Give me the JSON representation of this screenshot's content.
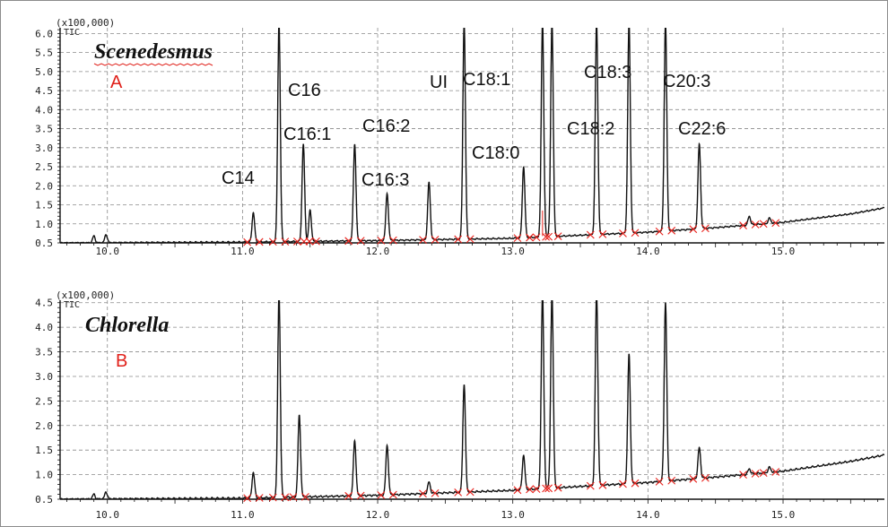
{
  "chart_data": [
    {
      "type": "line",
      "title": "Scenedesmus",
      "panel_label": "A",
      "y_multiplier": "(x100,000)",
      "y_tag": "TIC",
      "xlim": [
        9.65,
        15.75
      ],
      "ylim": [
        0.5,
        6.15
      ],
      "x_ticks": [
        "10.0",
        "11.0",
        "12.0",
        "13.0",
        "14.0",
        "15.0"
      ],
      "y_ticks": [
        "0.5",
        "1.0",
        "1.5",
        "2.0",
        "2.5",
        "3.0",
        "3.5",
        "4.0",
        "4.5",
        "5.0",
        "5.5",
        "6.0"
      ],
      "grid": true,
      "baseline": [
        [
          9.65,
          0.5
        ],
        [
          11.0,
          0.52
        ],
        [
          12.0,
          0.56
        ],
        [
          13.0,
          0.62
        ],
        [
          14.0,
          0.78
        ],
        [
          14.5,
          0.9
        ],
        [
          15.0,
          1.04
        ],
        [
          15.5,
          1.26
        ],
        [
          15.75,
          1.42
        ]
      ],
      "peaks": [
        {
          "x": 9.9,
          "h": 0.68
        },
        {
          "x": 9.99,
          "h": 0.72
        },
        {
          "x": 11.08,
          "h": 1.3,
          "label": "C14"
        },
        {
          "x": 11.27,
          "h": 6.3,
          "label": "C16"
        },
        {
          "x": 11.45,
          "h": 3.1,
          "label": "C16:1"
        },
        {
          "x": 11.5,
          "h": 1.35
        },
        {
          "x": 11.83,
          "h": 3.1,
          "label": "C16:2"
        },
        {
          "x": 12.07,
          "h": 1.8,
          "label": "C16:3"
        },
        {
          "x": 12.38,
          "h": 2.1
        },
        {
          "x": 12.64,
          "h": 6.3,
          "label": "UI"
        },
        {
          "x": 13.08,
          "h": 2.5,
          "label": "C18:0"
        },
        {
          "x": 13.22,
          "h": 6.3,
          "label": "C18:1"
        },
        {
          "x": 13.29,
          "h": 6.3
        },
        {
          "x": 13.62,
          "h": 6.3,
          "label": "C18:3"
        },
        {
          "x": 13.86,
          "h": 6.3,
          "label": "C18:2"
        },
        {
          "x": 14.13,
          "h": 6.3,
          "label": "C20:3"
        },
        {
          "x": 14.38,
          "h": 3.1,
          "label": "C22:6"
        },
        {
          "x": 14.75,
          "h": 1.2
        },
        {
          "x": 14.9,
          "h": 1.15
        }
      ]
    },
    {
      "type": "line",
      "title": "Chlorella",
      "panel_label": "B",
      "y_multiplier": "(x100,000)",
      "y_tag": "TIC",
      "xlim": [
        9.65,
        15.75
      ],
      "ylim": [
        0.5,
        4.55
      ],
      "x_ticks": [
        "10.0",
        "11.0",
        "12.0",
        "13.0",
        "14.0",
        "15.0"
      ],
      "y_ticks": [
        "0.5",
        "1.0",
        "1.5",
        "2.0",
        "2.5",
        "3.0",
        "3.5",
        "4.0",
        "4.5"
      ],
      "grid": true,
      "baseline": [
        [
          9.65,
          0.5
        ],
        [
          11.0,
          0.52
        ],
        [
          12.0,
          0.58
        ],
        [
          13.0,
          0.68
        ],
        [
          14.0,
          0.84
        ],
        [
          14.5,
          0.95
        ],
        [
          15.0,
          1.07
        ],
        [
          15.5,
          1.27
        ],
        [
          15.75,
          1.4
        ]
      ],
      "peaks": [
        {
          "x": 9.9,
          "h": 0.6
        },
        {
          "x": 9.99,
          "h": 0.65
        },
        {
          "x": 11.08,
          "h": 1.05
        },
        {
          "x": 11.27,
          "h": 4.7
        },
        {
          "x": 11.42,
          "h": 2.2
        },
        {
          "x": 11.83,
          "h": 1.7
        },
        {
          "x": 12.07,
          "h": 1.6
        },
        {
          "x": 12.38,
          "h": 0.85
        },
        {
          "x": 12.64,
          "h": 2.85
        },
        {
          "x": 13.08,
          "h": 1.4
        },
        {
          "x": 13.22,
          "h": 4.7
        },
        {
          "x": 13.29,
          "h": 4.7
        },
        {
          "x": 13.62,
          "h": 4.7
        },
        {
          "x": 13.86,
          "h": 3.45
        },
        {
          "x": 14.13,
          "h": 4.5
        },
        {
          "x": 14.38,
          "h": 1.55
        },
        {
          "x": 14.75,
          "h": 1.12
        },
        {
          "x": 14.9,
          "h": 1.15
        }
      ]
    }
  ],
  "colors": {
    "trace": "#111111",
    "grid": "#8a8a8a",
    "marker": "#e8201a",
    "panel_letter": "#e0201a"
  }
}
